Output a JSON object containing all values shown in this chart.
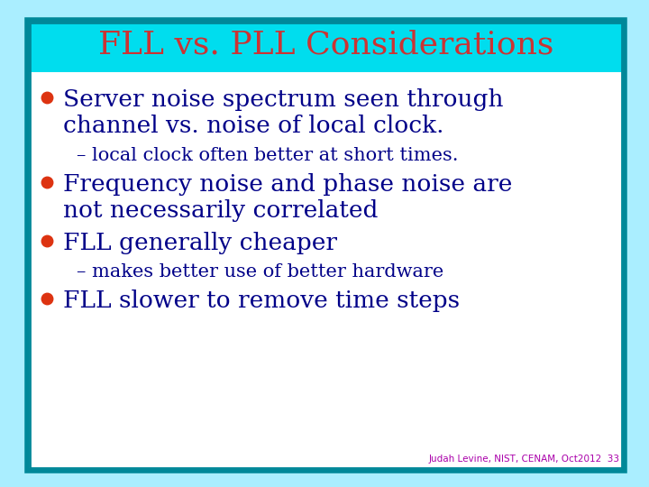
{
  "title": "FLL vs. PLL Considerations",
  "title_color": "#cc3333",
  "title_fontsize": 26,
  "bg_outer": "#aaeeff",
  "bg_inner": "#ffffff",
  "bg_top_band": "#00ddee",
  "border_color": "#008899",
  "bullet_color": "#dd3311",
  "text_color": "#000088",
  "footer_color": "#aa00aa",
  "footer_text": "Judah Levine, NIST, CENAM, Oct2012  33",
  "footer_fontsize": 7.5,
  "bullet_main_fontsize": 19,
  "bullet_sub_fontsize": 15,
  "bullets": [
    {
      "text": "Server noise spectrum seen through\nchannel vs. noise of local clock.",
      "sub": false
    },
    {
      "text": "– local clock often better at short times.",
      "sub": true
    },
    {
      "text": "Frequency noise and phase noise are\nnot necessarily correlated",
      "sub": false
    },
    {
      "text": "FLL generally cheaper",
      "sub": false
    },
    {
      "text": "– makes better use of better hardware",
      "sub": true
    },
    {
      "text": "FLL slower to remove time steps",
      "sub": false
    }
  ]
}
